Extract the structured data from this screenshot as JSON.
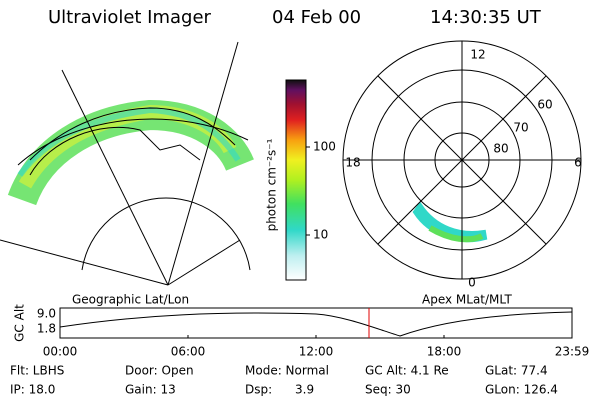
{
  "header": {
    "title": "Ultraviolet Imager",
    "date": "04 Feb 00",
    "time": "14:30:35 UT"
  },
  "colorbar": {
    "label": "photon cm⁻²s⁻¹",
    "ticks": [
      "100",
      "10"
    ]
  },
  "polar": {
    "labels": [
      "12",
      "18",
      "6",
      "0",
      "60",
      "70",
      "80"
    ]
  },
  "map_labels": [
    "Geographic Lat/Lon",
    "Apex MLat/MLT"
  ],
  "altitude": {
    "ylabel": "GC Alt",
    "yticks": [
      "9.0",
      "1.8"
    ],
    "xticks": [
      "00:00",
      "06:00",
      "12:00",
      "18:00",
      "23:59"
    ]
  },
  "info": [
    [
      "Flt: LBHS",
      "Door: Open",
      "Mode: Normal",
      "GC Alt: 4.1 Re",
      "GLat: 77.4"
    ],
    [
      "IP: 18.0",
      "Gain: 13",
      "Dsp:      3.9",
      "Seq: 30",
      "GLon: 126.4"
    ]
  ]
}
